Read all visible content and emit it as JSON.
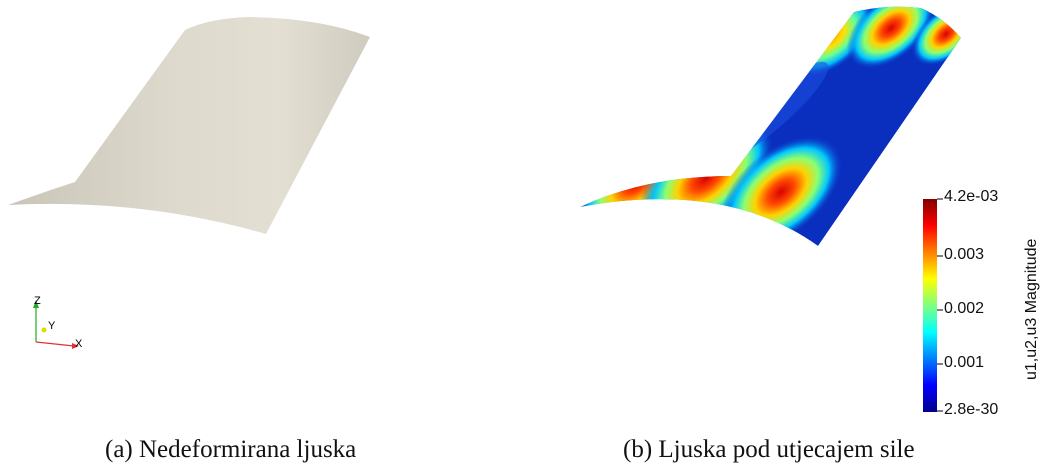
{
  "panel_a": {
    "caption": "(a) Nedeformirana ljuska",
    "surface_color": "#d9d5c9",
    "axes_triad": {
      "z_label": "Z",
      "y_label": "Y",
      "x_label": "X"
    }
  },
  "panel_b": {
    "caption": "(b) Ljuska pod utjecajem sile",
    "colorbar": {
      "title": "u1,u2,u3 Magnitude",
      "colormap": "jet",
      "max_label": "4.2e-03",
      "min_label": "2.8e-30",
      "ticks": [
        "0.003",
        "0.002",
        "0.001"
      ]
    }
  }
}
